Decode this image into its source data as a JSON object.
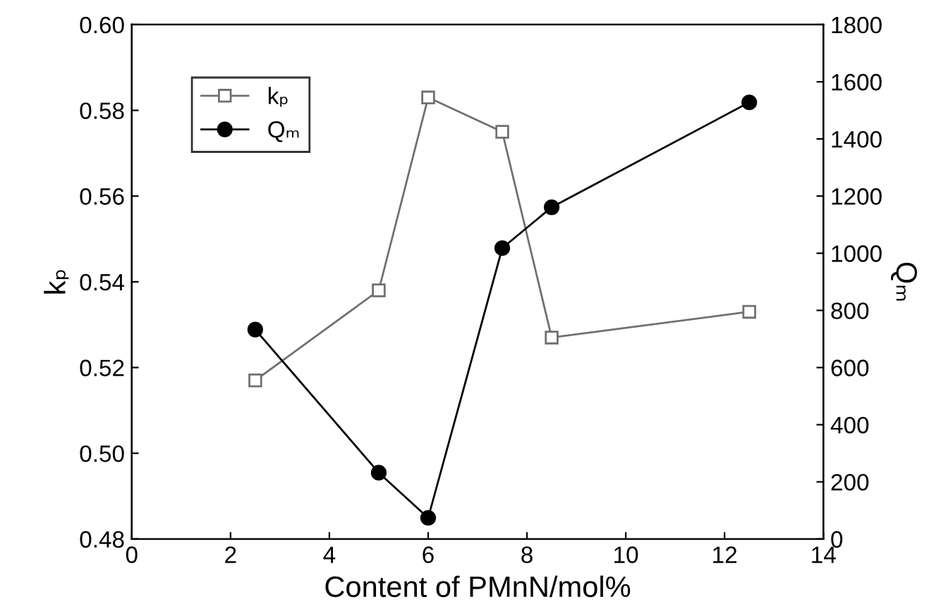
{
  "chart_data": {
    "type": "line",
    "xlabel": "Content of PMnN/mol%",
    "ylabel": "kₚ",
    "y2label": "Qₘ",
    "x": [
      2.5,
      5,
      6,
      7.5,
      8.5,
      12.5
    ],
    "series": [
      {
        "name": "kₚ",
        "color": "#707070",
        "marker": "square",
        "values": [
          0.517,
          0.538,
          0.583,
          0.575,
          0.527,
          0.533
        ]
      },
      {
        "name": "Qₘ",
        "color": "#000000",
        "marker": "circle",
        "axis": "y2",
        "values": [
          733,
          232,
          74,
          1018,
          1161,
          1528
        ]
      }
    ],
    "xlim": [
      0,
      14
    ],
    "xticks": [
      0,
      2,
      4,
      6,
      8,
      10,
      12,
      14
    ],
    "ylim": [
      0.48,
      0.6
    ],
    "yticks": [
      {
        "value": 0.48,
        "label": "0.48"
      },
      {
        "value": 0.5,
        "label": "0.50"
      },
      {
        "value": 0.52,
        "label": "0.52"
      },
      {
        "value": 0.54,
        "label": "0.54"
      },
      {
        "value": 0.56,
        "label": "0.56"
      },
      {
        "value": 0.58,
        "label": "0.58"
      },
      {
        "value": 0.6,
        "label": "0.60"
      }
    ],
    "y2lim": [
      0,
      1800
    ],
    "y2ticks": [
      0,
      200,
      400,
      600,
      800,
      1000,
      1200,
      1400,
      1600,
      1800
    ],
    "legend": "top left",
    "grid": false
  }
}
